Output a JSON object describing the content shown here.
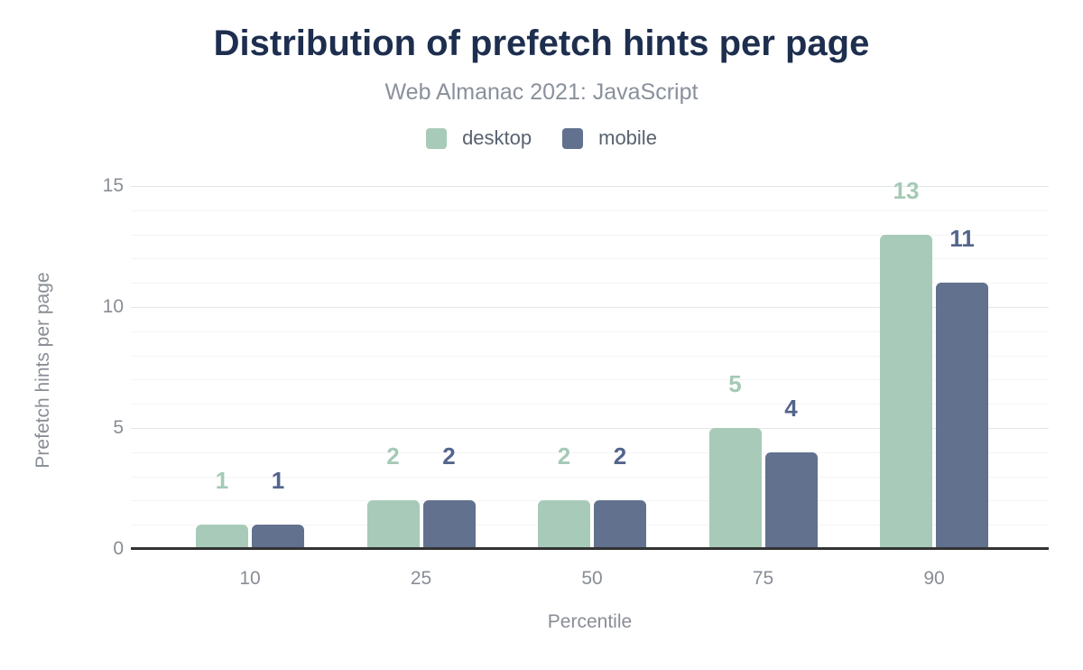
{
  "header": {
    "title": "Distribution of prefetch hints per page",
    "subtitle": "Web Almanac 2021: JavaScript"
  },
  "chart_data": {
    "type": "bar",
    "title": "Distribution of prefetch hints per page",
    "subtitle": "Web Almanac 2021: JavaScript",
    "categories": [
      "10",
      "25",
      "50",
      "75",
      "90"
    ],
    "series": [
      {
        "name": "desktop",
        "color": "#a7cbb8",
        "label_color": "#a4cab6",
        "values": [
          1,
          2,
          2,
          5,
          13
        ]
      },
      {
        "name": "mobile",
        "color": "#61718e",
        "label_color": "#53658c",
        "values": [
          1,
          2,
          2,
          4,
          11
        ]
      }
    ],
    "xlabel": "Percentile",
    "ylabel": "Prefetch hints per page",
    "ylim": [
      0,
      15
    ],
    "yticks": [
      0,
      5,
      10,
      15
    ],
    "minor_grid_step": 1,
    "major_grid_step": 5,
    "grid": "horizontal",
    "legend_position": "top",
    "data_labels": true
  },
  "colors": {
    "background": "#ffffff",
    "title": "#1d2e4e",
    "subtitle": "#8a909c",
    "legend_label": "#59626f",
    "tick_label": "#898d95",
    "axis_line": "#333333",
    "grid_minor": "#f3f4f5",
    "grid_major": "#e4e6e8"
  }
}
